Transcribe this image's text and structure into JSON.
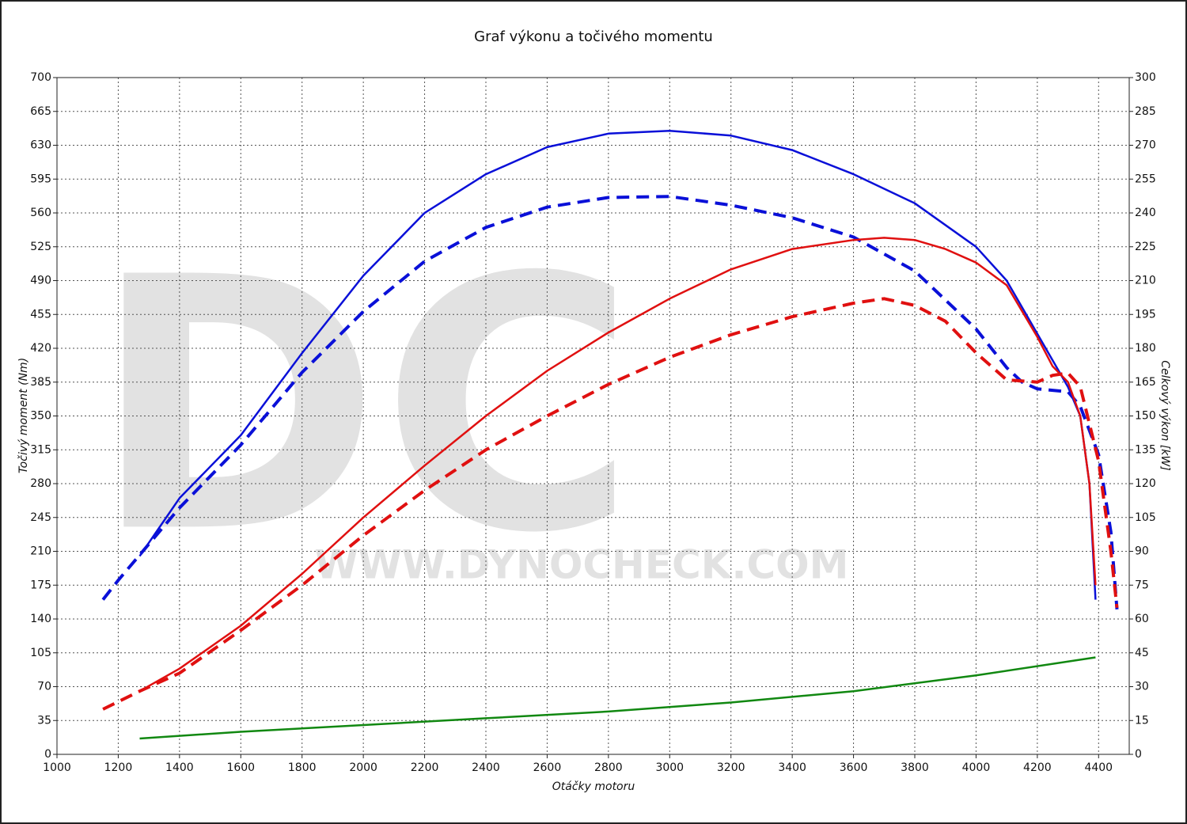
{
  "chart_data": {
    "type": "line",
    "title": "Graf výkonu a točivého momentu",
    "x_label": "Otáčky motoru",
    "y_label": "Točivý moment (Nm)",
    "y2_label": "Celkový výkon [kW]",
    "watermark": [
      "DC",
      "WWW.DYNOCHECK.COM"
    ],
    "xlim": [
      1000,
      4500
    ],
    "xticks": [
      1000,
      1200,
      1400,
      1600,
      1800,
      2000,
      2200,
      2400,
      2600,
      2800,
      3000,
      3200,
      3400,
      3600,
      3800,
      4000,
      4200,
      4400
    ],
    "ylim": [
      0,
      700
    ],
    "yticks": [
      0,
      35,
      70,
      105,
      140,
      175,
      210,
      245,
      280,
      315,
      350,
      385,
      420,
      455,
      490,
      525,
      560,
      595,
      630,
      665,
      700
    ],
    "y2lim": [
      0,
      300
    ],
    "y2ticks": [
      0,
      15,
      30,
      45,
      60,
      75,
      90,
      105,
      120,
      135,
      150,
      165,
      180,
      195,
      210,
      225,
      240,
      255,
      270,
      285,
      300
    ],
    "grid": true,
    "series": [
      {
        "color": "#0a10d8",
        "dash": true,
        "x": [
          1150,
          1200,
          1400,
          1600,
          1800,
          2000,
          2200,
          2400,
          2600,
          2800,
          3000,
          3200,
          3400,
          3600,
          3800,
          4000,
          4100,
          4150,
          4200,
          4300,
          4340,
          4400,
          4440,
          4460
        ],
        "values": [
          160,
          180,
          255,
          320,
          395,
          458,
          510,
          545,
          566,
          576,
          577,
          568,
          555,
          535,
          500,
          440,
          400,
          385,
          378,
          375,
          360,
          310,
          230,
          150
        ]
      },
      {
        "color": "#0a10d8",
        "dash": false,
        "x": [
          1270,
          1400,
          1600,
          1800,
          2000,
          2200,
          2400,
          2600,
          2800,
          3000,
          3200,
          3400,
          3600,
          3800,
          4000,
          4100,
          4200,
          4300,
          4340,
          4370,
          4390
        ],
        "values": [
          205,
          265,
          330,
          415,
          495,
          560,
          600,
          628,
          642,
          645,
          640,
          625,
          600,
          570,
          525,
          490,
          435,
          380,
          350,
          280,
          160
        ]
      },
      {
        "color": "#e01010",
        "dash": true,
        "axis": "y2",
        "x": [
          1150,
          1270,
          1400,
          1600,
          1800,
          2000,
          2200,
          2400,
          2600,
          2800,
          3000,
          3200,
          3400,
          3600,
          3700,
          3800,
          3900,
          4000,
          4100,
          4200,
          4250,
          4300,
          4340,
          4400,
          4440,
          4460
        ],
        "values": [
          20,
          28,
          36,
          55,
          75,
          97,
          117,
          135,
          150,
          164,
          176,
          186,
          194,
          200,
          202,
          199,
          192,
          178,
          166,
          165,
          168,
          169,
          163,
          130,
          90,
          65
        ]
      },
      {
        "color": "#e01010",
        "dash": false,
        "axis": "y2",
        "x": [
          1270,
          1400,
          1600,
          1800,
          2000,
          2200,
          2400,
          2600,
          2800,
          3000,
          3200,
          3400,
          3600,
          3700,
          3800,
          3900,
          4000,
          4100,
          4200,
          4250,
          4300,
          4340,
          4370,
          4390
        ],
        "values": [
          28,
          38,
          57,
          80,
          105,
          128,
          150,
          170,
          187,
          202,
          215,
          224,
          228,
          229,
          228,
          224,
          218,
          208,
          185,
          172,
          165,
          150,
          120,
          75
        ]
      },
      {
        "color": "#118811",
        "dash": false,
        "axis": "y2",
        "x": [
          1270,
          1600,
          2000,
          2400,
          2800,
          3200,
          3600,
          4000,
          4390
        ],
        "values": [
          7,
          10,
          13,
          16,
          19,
          23,
          28,
          35,
          43
        ]
      }
    ]
  }
}
